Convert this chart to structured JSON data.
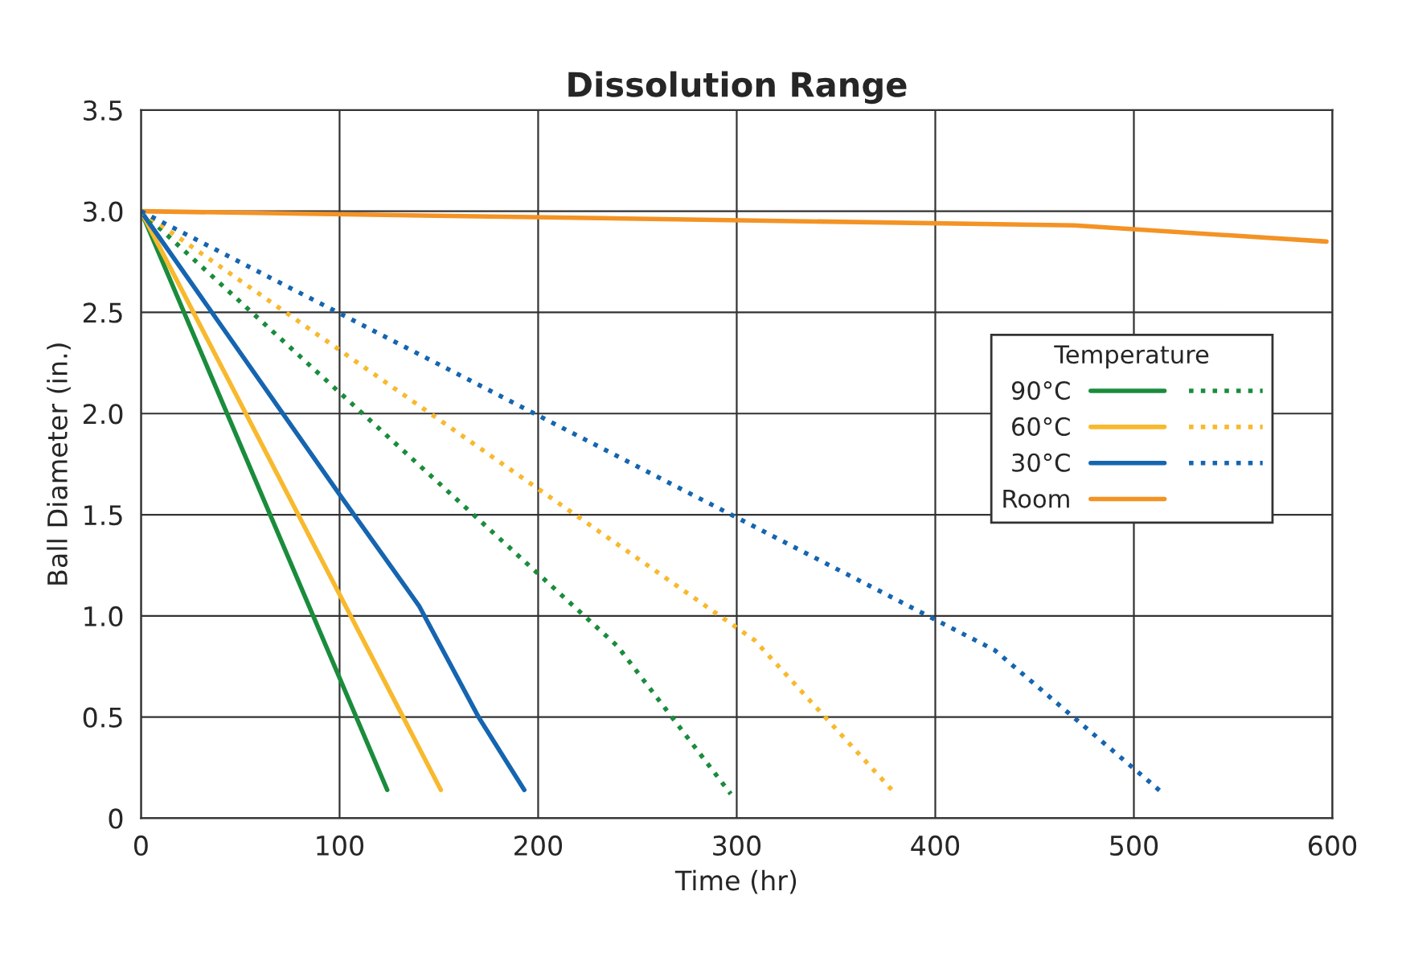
{
  "chart_data": {
    "type": "line",
    "title": "Dissolution Range",
    "xlabel": "Time (hr)",
    "ylabel": "Ball Diameter (in.)",
    "legend_title": "Temperature",
    "xlim": [
      0,
      600
    ],
    "xticks": [
      0,
      100,
      200,
      300,
      400,
      500,
      600
    ],
    "ylim": [
      0,
      3.5
    ],
    "yticks": [
      0,
      0.5,
      {
        "value": 1,
        "label": "1.0"
      },
      1.5,
      {
        "value": 2,
        "label": "2.0"
      },
      2.5,
      {
        "value": 3,
        "label": "3.0"
      },
      3.5
    ],
    "grid": true,
    "legend": "right",
    "marker": "none",
    "series": [
      {
        "name": "90°C",
        "color": "#1a8c3c",
        "line_style": "solid",
        "x": [
          0,
          124
        ],
        "values": [
          3.0,
          0.14
        ]
      },
      {
        "name": "60°C",
        "color": "#f8b92e",
        "line_style": "solid",
        "x": [
          0,
          151
        ],
        "values": [
          3.0,
          0.14
        ]
      },
      {
        "name": "30°C",
        "color": "#1565b0",
        "line_style": "solid",
        "x": [
          0,
          100,
          140,
          170,
          193
        ],
        "values": [
          3.0,
          1.6,
          1.05,
          0.5,
          0.14
        ]
      },
      {
        "name": "Room",
        "color": "#f39325",
        "line_style": "solid",
        "x": [
          0,
          470,
          597
        ],
        "values": [
          3.0,
          2.93,
          2.85
        ]
      },
      {
        "color": "#1a8c3c",
        "line_style": "dotted",
        "x": [
          0,
          240,
          297
        ],
        "values": [
          3.0,
          0.85,
          0.12
        ]
      },
      {
        "color": "#f8b92e",
        "line_style": "dotted",
        "x": [
          0,
          309,
          380
        ],
        "values": [
          3.0,
          0.88,
          0.12
        ]
      },
      {
        "color": "#1565b0",
        "line_style": "dotted",
        "x": [
          0,
          430,
          515
        ],
        "values": [
          3.0,
          0.83,
          0.12
        ]
      }
    ]
  }
}
